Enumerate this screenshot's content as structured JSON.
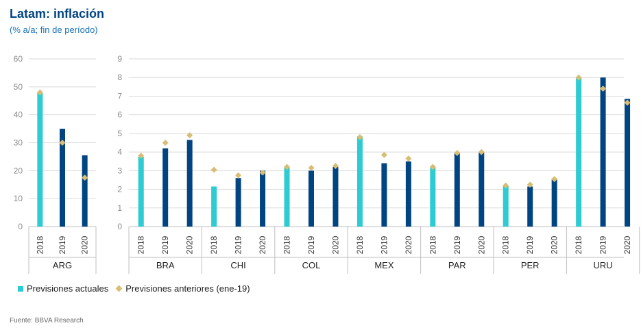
{
  "header": {
    "title": "Latam: inflación",
    "subtitle": "(% a/a; fin de período)"
  },
  "source": "Fuente: BBVA Research",
  "colors": {
    "actual_current_year": "#2dccd3",
    "actual_forecast": "#004481",
    "previous": "#d8be75",
    "grid": "#d9d9d9",
    "axis_text": "#8c8c8c"
  },
  "chart_data": [
    {
      "type": "bar",
      "panel": "left",
      "yticks": [
        "0",
        "10",
        "20",
        "30",
        "40",
        "50",
        "60"
      ],
      "ylim": [
        0,
        60
      ],
      "grid": true,
      "groups": [
        {
          "name": "ARG",
          "years": [
            "2018",
            "2019",
            "2020"
          ],
          "actual": [
            48,
            35,
            25.5
          ],
          "previous": [
            48,
            30,
            17.5
          ]
        }
      ]
    },
    {
      "type": "bar",
      "panel": "right",
      "yticks": [
        "0",
        "1",
        "2",
        "3",
        "4",
        "5",
        "6",
        "7",
        "8",
        "9"
      ],
      "ylim": [
        0,
        9
      ],
      "grid": true,
      "groups": [
        {
          "name": "BRA",
          "years": [
            "2018",
            "2019",
            "2020"
          ],
          "actual": [
            3.75,
            4.2,
            4.65
          ],
          "previous": [
            3.8,
            4.5,
            4.9
          ]
        },
        {
          "name": "CHI",
          "years": [
            "2018",
            "2019",
            "2020"
          ],
          "actual": [
            2.15,
            2.6,
            3.0
          ],
          "previous": [
            3.05,
            2.75,
            2.9
          ]
        },
        {
          "name": "COL",
          "years": [
            "2018",
            "2019",
            "2020"
          ],
          "actual": [
            3.2,
            3.0,
            3.2
          ],
          "previous": [
            3.2,
            3.15,
            3.25
          ]
        },
        {
          "name": "MEX",
          "years": [
            "2018",
            "2019",
            "2020"
          ],
          "actual": [
            4.85,
            3.4,
            3.5
          ],
          "previous": [
            4.8,
            3.85,
            3.65
          ]
        },
        {
          "name": "PAR",
          "years": [
            "2018",
            "2019",
            "2020"
          ],
          "actual": [
            3.2,
            3.95,
            4.0
          ],
          "previous": [
            3.2,
            3.95,
            4.0
          ]
        },
        {
          "name": "PER",
          "years": [
            "2018",
            "2019",
            "2020"
          ],
          "actual": [
            2.2,
            2.15,
            2.55
          ],
          "previous": [
            2.2,
            2.25,
            2.55
          ]
        },
        {
          "name": "URU",
          "years": [
            "2018",
            "2019",
            "2020"
          ],
          "actual": [
            8.0,
            8.0,
            6.85
          ],
          "previous": [
            8.0,
            7.4,
            6.65
          ]
        }
      ]
    }
  ],
  "legend": {
    "actual_label": "Previsiones actuales",
    "previous_label": "Previsiones anteriores (ene-19)",
    "placement": "bottom-left"
  }
}
